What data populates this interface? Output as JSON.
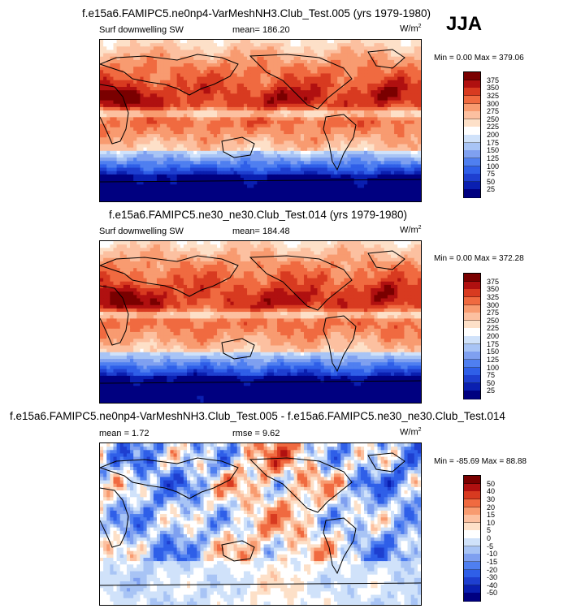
{
  "season": "JJA",
  "panels": [
    {
      "title": "f.e15a6.FAMIPC5.ne0np4-VarMeshNH3.Club_Test.005 (yrs 1979-1980)",
      "left_label": "Surf downwelling SW",
      "center_label": "mean= 186.20",
      "units": "W/m",
      "units_exp": "2",
      "minmax": "Min =   0.00 Max = 379.06",
      "kind": "abs"
    },
    {
      "title": "f.e15a6.FAMIPC5.ne30_ne30.Club_Test.014 (yrs 1979-1980)",
      "left_label": "Surf downwelling SW",
      "center_label": "mean= 184.48",
      "units": "W/m",
      "units_exp": "2",
      "minmax": "Min =   0.00 Max = 372.28",
      "kind": "abs"
    },
    {
      "title": "f.e15a6.FAMIPC5.ne0np4-VarMeshNH3.Club_Test.005 - f.e15a6.FAMIPC5.ne30_ne30.Club_Test.014",
      "left_label": "mean =   1.72",
      "center_label": "rmse =   9.62",
      "units": "W/m",
      "units_exp": "2",
      "minmax": "Min = -85.69 Max =  88.88",
      "kind": "diff"
    }
  ],
  "chart_data": [
    {
      "type": "heatmap",
      "variable": "Surf downwelling SW",
      "units": "W/m2",
      "mean": 186.2,
      "min": 0.0,
      "max": 379.06,
      "colorbar_levels": [
        25,
        50,
        75,
        100,
        125,
        150,
        175,
        200,
        225,
        250,
        275,
        300,
        325,
        350,
        375
      ],
      "colorbar_colors": [
        "#000080",
        "#0a1fb0",
        "#1e3fd0",
        "#2f5fe8",
        "#4f7ff0",
        "#7fa0f0",
        "#a8c4f5",
        "#d0e2fa",
        "#ffffff",
        "#fde0c8",
        "#fcc0a0",
        "#f89b70",
        "#f06a40",
        "#d83a20",
        "#b01010",
        "#7a0000"
      ],
      "colorbar_labels": [
        "375",
        "350",
        "325",
        "300",
        "275",
        "250",
        "225",
        "200",
        "175",
        "150",
        "125",
        "100",
        "75",
        "50",
        "25"
      ]
    },
    {
      "type": "heatmap",
      "variable": "Surf downwelling SW",
      "units": "W/m2",
      "mean": 184.48,
      "min": 0.0,
      "max": 372.28,
      "colorbar_levels": [
        25,
        50,
        75,
        100,
        125,
        150,
        175,
        200,
        225,
        250,
        275,
        300,
        325,
        350,
        375
      ],
      "colorbar_colors": [
        "#000080",
        "#0a1fb0",
        "#1e3fd0",
        "#2f5fe8",
        "#4f7ff0",
        "#7fa0f0",
        "#a8c4f5",
        "#d0e2fa",
        "#ffffff",
        "#fde0c8",
        "#fcc0a0",
        "#f89b70",
        "#f06a40",
        "#d83a20",
        "#b01010",
        "#7a0000"
      ],
      "colorbar_labels": [
        "375",
        "350",
        "325",
        "300",
        "275",
        "250",
        "225",
        "200",
        "175",
        "150",
        "125",
        "100",
        "75",
        "50",
        "25"
      ]
    },
    {
      "type": "heatmap",
      "variable": "difference",
      "units": "W/m2",
      "mean": 1.72,
      "rmse": 9.62,
      "min": -85.69,
      "max": 88.88,
      "colorbar_levels": [
        -50,
        -40,
        -30,
        -20,
        -15,
        -10,
        -5,
        0,
        5,
        10,
        15,
        20,
        30,
        40,
        50
      ],
      "colorbar_colors": [
        "#000080",
        "#0a1fb0",
        "#1e3fd0",
        "#2f5fe8",
        "#4f7ff0",
        "#7fa0f0",
        "#a8c4f5",
        "#d0e2fa",
        "#ffffff",
        "#fde0c8",
        "#fcc0a0",
        "#f89b70",
        "#f06a40",
        "#d83a20",
        "#b01010",
        "#7a0000"
      ],
      "colorbar_labels": [
        "50",
        "40",
        "30",
        "20",
        "15",
        "10",
        "5",
        "0",
        "-5",
        "-10",
        "-15",
        "-20",
        "-30",
        "-40",
        "-50"
      ]
    }
  ]
}
